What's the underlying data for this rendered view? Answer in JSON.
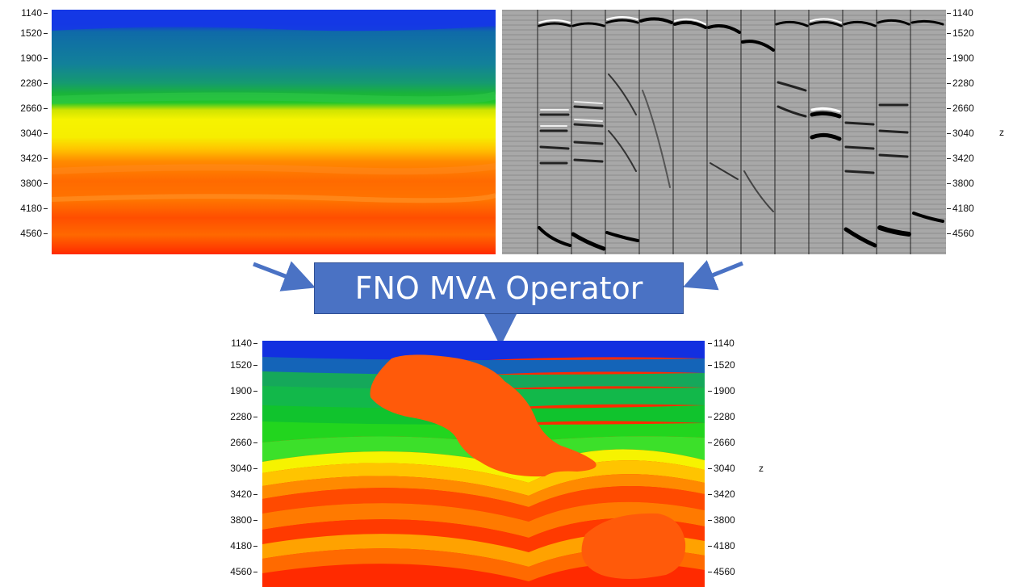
{
  "depth_ticks": [
    "1140",
    "1520",
    "1900",
    "2280",
    "2660",
    "3040",
    "3420",
    "3800",
    "4180",
    "4560"
  ],
  "axis_label": "z",
  "operator_label": "FNO MVA Operator",
  "colors": {
    "deep_blue": "#1433e0",
    "teal": "#12809a",
    "green": "#19bf2a",
    "yellow": "#f6f300",
    "orange": "#ff7a00",
    "red": "#ff2a00",
    "salt": "#ff5a0a",
    "arrow": "#4a72c4"
  }
}
